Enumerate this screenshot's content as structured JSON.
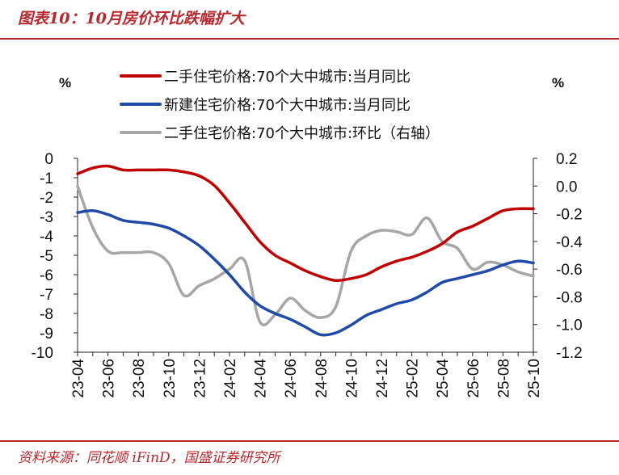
{
  "header": {
    "title": "图表10：10月房价环比跌幅扩大"
  },
  "footer": {
    "source": "资料来源：同花顺 iFinD，国盛证券研究所"
  },
  "chart_data": {
    "type": "line",
    "title": "10月房价环比跌幅扩大",
    "left_unit": "%",
    "right_unit": "%",
    "y_left_range": [
      -10,
      0
    ],
    "y_right_range": [
      -1.2,
      0.2
    ],
    "y_left_ticks": [
      "0",
      "-1",
      "-2",
      "-3",
      "-4",
      "-5",
      "-6",
      "-7",
      "-8",
      "-9",
      "-10"
    ],
    "y_right_ticks": [
      "0.2",
      "0.0",
      "-0.2",
      "-0.4",
      "-0.6",
      "-0.8",
      "-1.0",
      "-1.2"
    ],
    "x_tick_labels": [
      "23-04",
      "23-06",
      "23-08",
      "23-10",
      "23-12",
      "24-02",
      "24-04",
      "24-06",
      "24-08",
      "24-10",
      "24-12",
      "25-02",
      "25-04",
      "25-06",
      "25-08",
      "25-10"
    ],
    "x_months": [
      "23-04",
      "23-05",
      "23-06",
      "23-07",
      "23-08",
      "23-09",
      "23-10",
      "23-11",
      "23-12",
      "24-01",
      "24-02",
      "24-03",
      "24-04",
      "24-05",
      "24-06",
      "24-07",
      "24-08",
      "24-09",
      "24-10",
      "24-11",
      "24-12",
      "25-01",
      "25-02",
      "25-03",
      "25-04",
      "25-05",
      "25-06",
      "25-07",
      "25-08",
      "25-09",
      "25-10"
    ],
    "legend_position": "top",
    "series": [
      {
        "name": "二手住宅价格:70个大中城市:当月同比",
        "axis": "left",
        "color": "#c00000",
        "values": [
          -0.8,
          -0.5,
          -0.4,
          -0.6,
          -0.6,
          -0.6,
          -0.6,
          -0.7,
          -0.9,
          -1.4,
          -2.3,
          -3.3,
          -4.3,
          -5.0,
          -5.4,
          -5.8,
          -6.1,
          -6.3,
          -6.2,
          -6.0,
          -5.6,
          -5.3,
          -5.1,
          -4.8,
          -4.4,
          -3.8,
          -3.5,
          -3.1,
          -2.7,
          -2.6,
          -2.6
        ]
      },
      {
        "name": "新建住宅价格:70个大中城市:当月同比",
        "axis": "left",
        "color": "#1f4aa8",
        "values": [
          -2.8,
          -2.7,
          -2.9,
          -3.2,
          -3.3,
          -3.4,
          -3.6,
          -4.0,
          -4.5,
          -5.2,
          -6.0,
          -6.9,
          -7.6,
          -8.0,
          -8.3,
          -8.7,
          -9.1,
          -9.0,
          -8.6,
          -8.1,
          -7.8,
          -7.5,
          -7.3,
          -6.9,
          -6.4,
          -6.2,
          -6.0,
          -5.8,
          -5.5,
          -5.3,
          -5.4
        ]
      },
      {
        "name": "二手住宅价格:70个大中城市:环比（右轴）",
        "axis": "right",
        "color": "#a6a6a6",
        "values": [
          0.0,
          -0.3,
          -0.47,
          -0.48,
          -0.48,
          -0.48,
          -0.56,
          -0.79,
          -0.72,
          -0.67,
          -0.6,
          -0.54,
          -0.98,
          -0.93,
          -0.81,
          -0.9,
          -0.95,
          -0.87,
          -0.47,
          -0.36,
          -0.32,
          -0.33,
          -0.35,
          -0.23,
          -0.4,
          -0.45,
          -0.6,
          -0.55,
          -0.57,
          -0.62,
          -0.65
        ]
      }
    ]
  }
}
